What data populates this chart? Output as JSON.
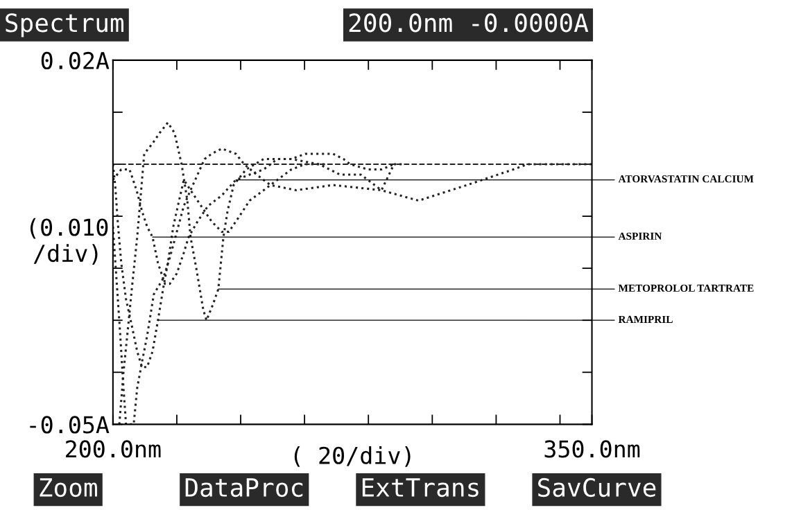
{
  "chart_data": {
    "type": "line",
    "title": "Spectrum",
    "xlabel": "( 20/div)",
    "ylabel": "(0.010\n/div)",
    "xlim": [
      200,
      350
    ],
    "ylim": [
      -0.05,
      0.02
    ],
    "xticks": [
      {
        "value": 200,
        "label": "200.0nm"
      },
      {
        "value": 220,
        "label": null
      },
      {
        "value": 240,
        "label": null
      },
      {
        "value": 260,
        "label": null
      },
      {
        "value": 280,
        "label": null
      },
      {
        "value": 300,
        "label": null
      },
      {
        "value": 320,
        "label": null
      },
      {
        "value": 340,
        "label": null
      },
      {
        "value": 350,
        "label": "350.0nm"
      }
    ],
    "yticks": [
      {
        "value": 0.02,
        "label": "0.02A"
      },
      {
        "value": 0.01,
        "label": null
      },
      {
        "value": 0,
        "label": null
      },
      {
        "value": -0.01,
        "label": null
      },
      {
        "value": -0.02,
        "label": null
      },
      {
        "value": -0.03,
        "label": null
      },
      {
        "value": -0.04,
        "label": null
      },
      {
        "value": -0.05,
        "label": "-0.05A"
      }
    ],
    "grid": false,
    "line_style": "dotted",
    "ref_lines": [
      {
        "axis": "y",
        "value": 0,
        "color": "#222222",
        "line_style": "dashed"
      }
    ],
    "series": [
      {
        "color": "#222222",
        "x": [
          202,
          203.3,
          204.8,
          205.9,
          207.6,
          208.7,
          209.8,
          212.4,
          214.6,
          217.2,
          219.3,
          221.5,
          223.3,
          224.3,
          226.1,
          228.3,
          229.3,
          231.3,
          233,
          234.6,
          235.9,
          237.8,
          241.7,
          247.2,
          255.9,
          264.6,
          271.1,
          277.6,
          284.1,
          288,
          290.7
        ],
        "values": [
          -0.05,
          -0.04,
          -0.031,
          -0.024,
          -0.014,
          -0.006,
          0.002,
          0.004,
          0.006,
          0.008,
          0.006,
          0.0,
          -0.007,
          -0.014,
          -0.02,
          -0.028,
          -0.03,
          -0.027,
          -0.024,
          -0.014,
          -0.009,
          -0.004,
          -0.001,
          0.001,
          0.001,
          0.0,
          -0.002,
          -0.002,
          -0.005,
          0.0,
          0.0
        ]
      },
      {
        "color": "#222222",
        "x": [
          200,
          200.7,
          201.5,
          202.6,
          204.1,
          205.9,
          207.6,
          209.1,
          210.7,
          212.4,
          214.1,
          215.7,
          217.2,
          218.9,
          220.7,
          222.2,
          224.3,
          227.6,
          230.9,
          234.1,
          236.3,
          239.6,
          242.8,
          247.2,
          251.5,
          255.9,
          260.2,
          266.7
        ],
        "values": [
          0.0,
          -0.004,
          -0.011,
          -0.019,
          -0.026,
          -0.031,
          -0.036,
          -0.039,
          -0.039,
          -0.036,
          -0.03,
          -0.024,
          -0.019,
          -0.012,
          -0.007,
          -0.003,
          -0.005,
          -0.008,
          -0.011,
          -0.013,
          -0.013,
          -0.01,
          -0.007,
          -0.005,
          -0.003,
          -0.001,
          0.0,
          0.0
        ]
      },
      {
        "color": "#222222",
        "x": [
          200,
          202.6,
          205.2,
          206.3,
          207.4,
          209.1,
          210.7,
          212.4,
          214.1,
          216.3,
          217.8,
          220,
          222.2,
          223.7,
          226.5,
          229.8,
          234.1,
          238.5,
          242.8,
          247.2,
          251.5,
          255.9,
          260.2,
          268.9,
          272.2,
          274.3,
          279.8,
          284.1,
          288
        ],
        "values": [
          -0.003,
          -0.001,
          -0.001,
          -0.003,
          -0.005,
          -0.009,
          -0.012,
          -0.014,
          -0.019,
          -0.023,
          -0.023,
          -0.021,
          -0.017,
          -0.014,
          -0.011,
          -0.008,
          -0.006,
          -0.003,
          -0.002,
          -0.001,
          0.001,
          0.001,
          0.002,
          0.002,
          0.001,
          0.0,
          -0.001,
          -0.001,
          0.0
        ]
      },
      {
        "color": "#222222",
        "x": [
          200,
          201.1,
          202.2,
          203.3,
          204.1,
          206.5,
          207.6,
          209.1,
          210.7,
          212.8,
          215.7,
          217.8,
          220,
          222.2,
          224.3,
          226.5,
          228.7,
          230.9,
          234.1,
          238.5,
          241.1,
          245,
          249.3,
          257.4,
          268.9,
          284.1,
          295.7,
          310.9,
          325.4,
          329.8,
          350
        ],
        "values": [
          -0.012,
          -0.022,
          -0.032,
          -0.043,
          -0.05,
          -0.05,
          -0.043,
          -0.038,
          -0.033,
          -0.025,
          -0.022,
          -0.018,
          -0.013,
          -0.008,
          -0.005,
          -0.002,
          0.001,
          0.002,
          0.003,
          0.002,
          0.0,
          -0.002,
          -0.004,
          -0.005,
          -0.004,
          -0.005,
          -0.007,
          -0.004,
          -0.001,
          0.0,
          0.0
        ]
      }
    ],
    "annotations": [
      "200.0nm -0.0000A",
      "Zoom",
      "DataProc",
      "ExtTrans",
      "SavCurve",
      {
        "text": "ATORVASTATIN CALCIUM",
        "x": 238.5,
        "y": -0.003
      },
      {
        "text": "ASPIRIN",
        "x": 212.4,
        "y": -0.014
      },
      {
        "text": "METOPROLOL TARTRATE",
        "x": 233,
        "y": -0.024
      },
      {
        "text": "RAMIPRIL",
        "x": 214.1,
        "y": -0.03
      }
    ]
  }
}
